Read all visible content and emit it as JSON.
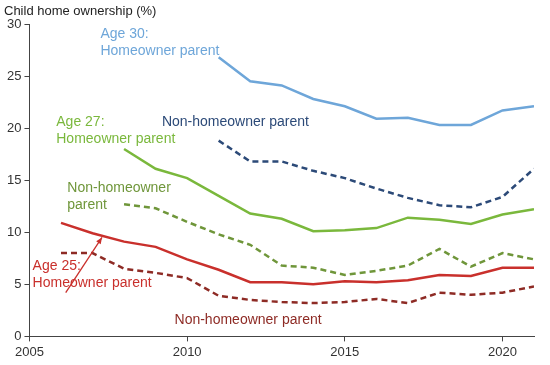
{
  "chart_data": {
    "type": "line",
    "ylabel": "Child home ownership (%)",
    "x": [
      2006,
      2007,
      2008,
      2009,
      2010,
      2011,
      2012,
      2013,
      2014,
      2015,
      2016,
      2017,
      2018,
      2019,
      2020,
      2021
    ],
    "xlim": [
      2005,
      2021
    ],
    "xticks": [
      2005,
      2010,
      2015,
      2020
    ],
    "ylim": [
      0,
      30
    ],
    "yticks": [
      0,
      5,
      10,
      15,
      20,
      25,
      30
    ],
    "grid": false,
    "series": [
      {
        "name": "Age 30: Homeowner parent",
        "color": "#6ea6d9",
        "line_style": "solid",
        "marker": "none",
        "values": [
          null,
          null,
          null,
          null,
          null,
          26.8,
          24.5,
          24.1,
          22.8,
          22.1,
          20.9,
          21.0,
          20.3,
          20.3,
          21.7,
          22.1
        ]
      },
      {
        "name": "Non-homeowner parent",
        "color": "#2c4a78",
        "line_style": "dashed",
        "marker": "none",
        "values": [
          null,
          null,
          null,
          null,
          null,
          18.8,
          16.8,
          16.8,
          15.9,
          15.2,
          14.2,
          13.3,
          12.6,
          12.4,
          13.4,
          16.1
        ]
      },
      {
        "name": "Age 27: Homeowner parent",
        "color": "#7ab83c",
        "line_style": "solid",
        "marker": "none",
        "values": [
          null,
          null,
          18.0,
          16.1,
          15.2,
          13.5,
          11.8,
          11.3,
          10.1,
          10.2,
          10.4,
          11.4,
          11.2,
          10.8,
          11.7,
          12.2
        ]
      },
      {
        "name": "Non-homeowner parent",
        "color": "#6f963a",
        "line_style": "dashed",
        "marker": "none",
        "values": [
          null,
          null,
          12.7,
          12.3,
          11.0,
          9.8,
          8.8,
          6.8,
          6.6,
          5.9,
          6.3,
          6.8,
          8.4,
          6.7,
          8.0,
          7.4
        ]
      },
      {
        "name": "Age 25: Homeowner parent",
        "color": "#c9302c",
        "line_style": "solid",
        "marker": "none",
        "values": [
          10.9,
          9.9,
          9.1,
          8.6,
          7.4,
          6.4,
          5.2,
          5.2,
          5.0,
          5.3,
          5.2,
          5.4,
          5.9,
          5.8,
          6.6,
          6.6
        ]
      },
      {
        "name": "Non-homeowner parent",
        "color": "#8e2b25",
        "line_style": "dashed",
        "marker": "none",
        "values": [
          8.0,
          8.0,
          6.5,
          6.1,
          5.6,
          3.9,
          3.5,
          3.3,
          3.2,
          3.3,
          3.6,
          3.2,
          4.2,
          4.0,
          4.2,
          4.8
        ]
      }
    ]
  }
}
